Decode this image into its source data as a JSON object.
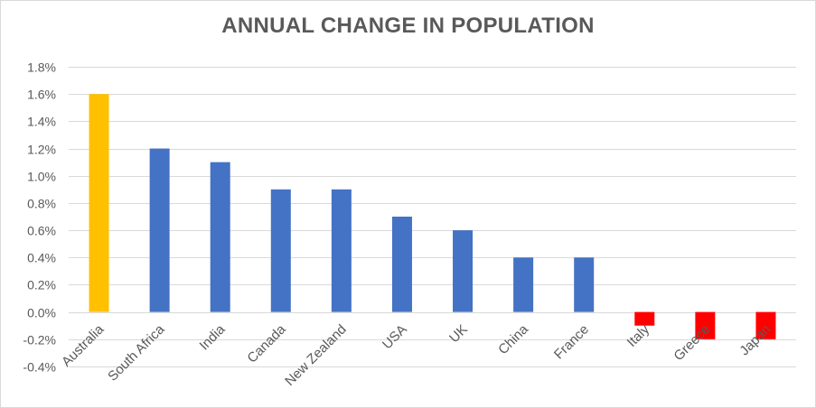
{
  "chart_data": {
    "type": "bar",
    "title": "ANNUAL CHANGE IN POPULATION",
    "xlabel": "",
    "ylabel": "",
    "categories": [
      "Australia",
      "South Africa",
      "India",
      "Canada",
      "New Zealand",
      "USA",
      "UK",
      "China",
      "France",
      "Italy",
      "Greece",
      "Japan"
    ],
    "values": [
      1.6,
      1.2,
      1.1,
      0.9,
      0.9,
      0.7,
      0.6,
      0.4,
      0.4,
      -0.1,
      -0.2,
      -0.2
    ],
    "value_format": "percent",
    "ylim": [
      -0.4,
      1.8
    ],
    "yticks": [
      "1.8%",
      "1.6%",
      "1.4%",
      "1.2%",
      "1.0%",
      "0.8%",
      "0.6%",
      "0.4%",
      "0.2%",
      "0.0%",
      "-0.2%",
      "-0.4%"
    ],
    "grid": true,
    "legend": "none",
    "colors": {
      "highlight": "#ffc000",
      "positive": "#4472c4",
      "negative": "#ff0000",
      "grid": "#d9d9d9",
      "text": "#595959"
    },
    "bar_colors": [
      "highlight",
      "positive",
      "positive",
      "positive",
      "positive",
      "positive",
      "positive",
      "positive",
      "positive",
      "negative",
      "negative",
      "negative"
    ]
  }
}
